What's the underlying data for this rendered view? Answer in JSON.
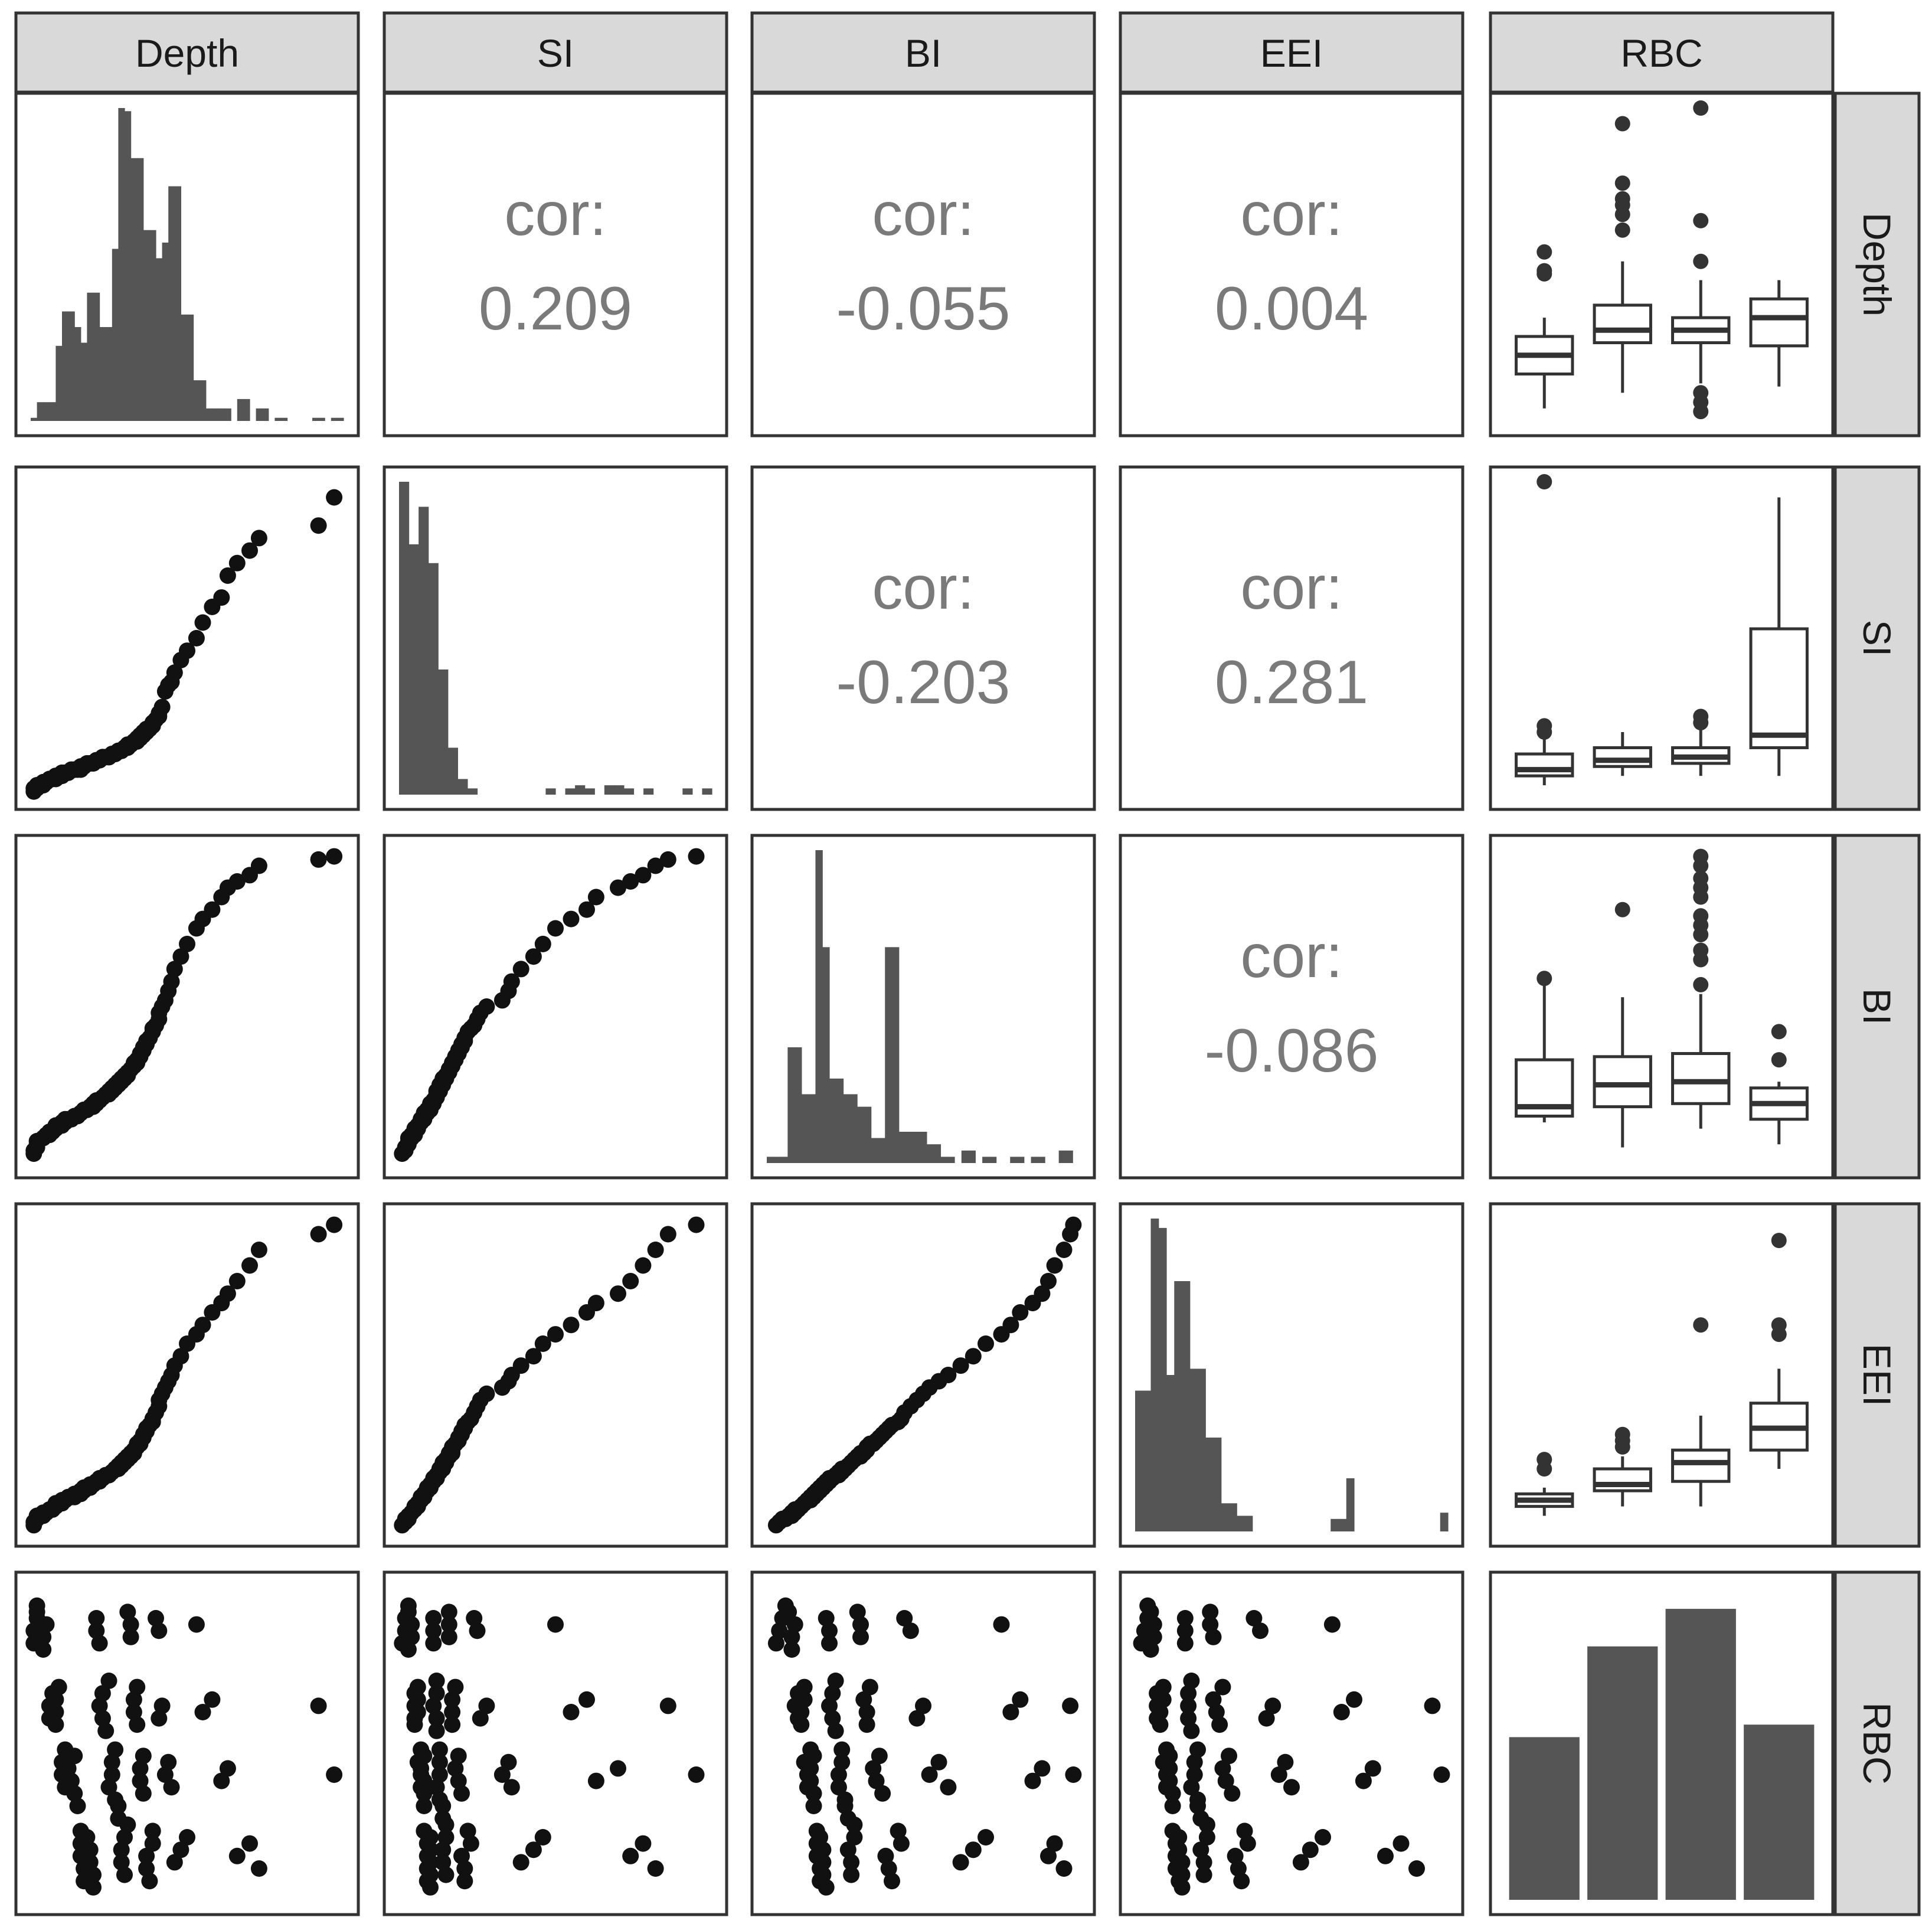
{
  "figure": {
    "variables": [
      "Depth",
      "SI",
      "BI",
      "EEI",
      "RBC"
    ],
    "cor_label": "cor:"
  },
  "chart_data": {
    "type": "pairs",
    "variables": [
      "Depth",
      "SI",
      "BI",
      "EEI",
      "RBC"
    ],
    "categorical_variable": "RBC",
    "correlations": [
      {
        "row": "Depth",
        "col": "SI",
        "value": "0.209"
      },
      {
        "row": "Depth",
        "col": "BI",
        "value": "-0.055"
      },
      {
        "row": "Depth",
        "col": "EEI",
        "value": "0.004"
      },
      {
        "row": "SI",
        "col": "BI",
        "value": "-0.203"
      },
      {
        "row": "SI",
        "col": "EEI",
        "value": "0.281"
      },
      {
        "row": "BI",
        "col": "EEI",
        "value": "-0.086"
      }
    ],
    "histograms": {
      "Depth": [
        0.01,
        0.06,
        0.06,
        0.06,
        0.24,
        0.35,
        0.35,
        0.3,
        0.25,
        0.41,
        0.41,
        0.3,
        0.3,
        0.55,
        1.0,
        0.99,
        0.84,
        0.84,
        0.61,
        0.61,
        0.52,
        0.57,
        0.75,
        0.75,
        0.34,
        0.34,
        0.13,
        0.13,
        0.04,
        0.04,
        0.04,
        0.04,
        0.0,
        0.07,
        0.07,
        0.0,
        0.04,
        0.04,
        0.0,
        0.01,
        0.01,
        0.0,
        0.0,
        0.0,
        0.0,
        0.01,
        0.01,
        0.0,
        0.01,
        0.01
      ],
      "SI": [
        1.0,
        0.8,
        0.92,
        0.74,
        0.4,
        0.15,
        0.05,
        0.02,
        0.0,
        0.0,
        0.0,
        0.0,
        0.0,
        0.0,
        0.0,
        0.02,
        0.0,
        0.02,
        0.03,
        0.02,
        0.0,
        0.03,
        0.03,
        0.02,
        0.0,
        0.02,
        0.0,
        0.0,
        0.0,
        0.02,
        0.0,
        0.02
      ],
      "BI": [
        0.02,
        0.02,
        0.02,
        0.37,
        0.37,
        0.22,
        0.22,
        1.0,
        0.69,
        0.27,
        0.27,
        0.22,
        0.22,
        0.18,
        0.18,
        0.08,
        0.08,
        0.69,
        0.69,
        0.1,
        0.1,
        0.1,
        0.1,
        0.06,
        0.06,
        0.02,
        0.02,
        0.0,
        0.04,
        0.04,
        0.0,
        0.02,
        0.02,
        0.0,
        0.0,
        0.02,
        0.02,
        0.0,
        0.02,
        0.02,
        0.0,
        0.0,
        0.04,
        0.04,
        0.0
      ],
      "EEI": [
        0.45,
        0.45,
        1.0,
        0.97,
        0.5,
        0.8,
        0.8,
        0.52,
        0.52,
        0.3,
        0.3,
        0.09,
        0.09,
        0.05,
        0.05,
        0.0,
        0.0,
        0.0,
        0.0,
        0.0,
        0.0,
        0.0,
        0.0,
        0.0,
        0.0,
        0.04,
        0.04,
        0.17,
        0.0,
        0.0,
        0.0,
        0.0,
        0.0,
        0.0,
        0.0,
        0.0,
        0.0,
        0.0,
        0.0,
        0.06
      ]
    },
    "rbc_counts": [
      0.52,
      0.81,
      0.93,
      0.56
    ],
    "boxplots": {
      "Depth": [
        {
          "q1": 0.15,
          "median": 0.21,
          "q3": 0.27,
          "wlo": 0.04,
          "whi": 0.33,
          "out": [
            0.47,
            0.48,
            0.54
          ]
        },
        {
          "q1": 0.25,
          "median": 0.29,
          "q3": 0.37,
          "wlo": 0.09,
          "whi": 0.51,
          "out": [
            0.61,
            0.66,
            0.69,
            0.71,
            0.76,
            0.95
          ]
        },
        {
          "q1": 0.25,
          "median": 0.29,
          "q3": 0.33,
          "wlo": 0.12,
          "whi": 0.45,
          "out": [
            0.03,
            0.06,
            0.09,
            0.51,
            0.64,
            1.0
          ]
        },
        {
          "q1": 0.24,
          "median": 0.33,
          "q3": 0.39,
          "wlo": 0.11,
          "whi": 0.45,
          "out": []
        }
      ],
      "SI": [
        {
          "q1": 0.06,
          "median": 0.08,
          "q3": 0.13,
          "wlo": 0.03,
          "whi": 0.19,
          "out": [
            0.2,
            0.22,
            1.0
          ]
        },
        {
          "q1": 0.09,
          "median": 0.11,
          "q3": 0.15,
          "wlo": 0.06,
          "whi": 0.2,
          "out": []
        },
        {
          "q1": 0.1,
          "median": 0.12,
          "q3": 0.15,
          "wlo": 0.06,
          "whi": 0.21,
          "out": [
            0.23,
            0.25
          ]
        },
        {
          "q1": 0.15,
          "median": 0.19,
          "q3": 0.53,
          "wlo": 0.06,
          "whi": 0.95,
          "out": []
        }
      ],
      "BI": [
        {
          "q1": 0.15,
          "median": 0.18,
          "q3": 0.33,
          "wlo": 0.13,
          "whi": 0.58,
          "out": [
            0.59
          ]
        },
        {
          "q1": 0.18,
          "median": 0.25,
          "q3": 0.34,
          "wlo": 0.05,
          "whi": 0.53,
          "out": [
            0.81
          ]
        },
        {
          "q1": 0.19,
          "median": 0.26,
          "q3": 0.35,
          "wlo": 0.11,
          "whi": 0.54,
          "out": [
            0.57,
            0.65,
            0.68,
            0.73,
            0.76,
            0.79,
            0.85,
            0.88,
            0.91,
            0.95,
            0.98
          ]
        },
        {
          "q1": 0.14,
          "median": 0.19,
          "q3": 0.24,
          "wlo": 0.06,
          "whi": 0.26,
          "out": [
            0.33,
            0.42
          ]
        }
      ],
      "EEI": [
        {
          "q1": 0.08,
          "median": 0.1,
          "q3": 0.12,
          "wlo": 0.05,
          "whi": 0.14,
          "out": [
            0.2,
            0.23
          ]
        },
        {
          "q1": 0.13,
          "median": 0.15,
          "q3": 0.2,
          "wlo": 0.08,
          "whi": 0.24,
          "out": [
            0.27,
            0.29,
            0.31
          ]
        },
        {
          "q1": 0.16,
          "median": 0.22,
          "q3": 0.26,
          "wlo": 0.08,
          "whi": 0.37,
          "out": [
            0.66
          ]
        },
        {
          "q1": 0.26,
          "median": 0.33,
          "q3": 0.41,
          "wlo": 0.2,
          "whi": 0.52,
          "out": [
            0.63,
            0.66,
            0.93
          ]
        }
      ]
    },
    "scatter": {
      "Depth": [
        0.01,
        0.01,
        0.02,
        0.02,
        0.02,
        0.04,
        0.04,
        0.05,
        0.06,
        0.06,
        0.07,
        0.08,
        0.08,
        0.08,
        0.09,
        0.1,
        0.1,
        0.11,
        0.11,
        0.12,
        0.13,
        0.14,
        0.14,
        0.15,
        0.16,
        0.16,
        0.16,
        0.17,
        0.17,
        0.18,
        0.19,
        0.19,
        0.2,
        0.2,
        0.21,
        0.21,
        0.22,
        0.22,
        0.23,
        0.23,
        0.24,
        0.25,
        0.25,
        0.26,
        0.26,
        0.27,
        0.27,
        0.28,
        0.28,
        0.29,
        0.29,
        0.3,
        0.3,
        0.31,
        0.31,
        0.32,
        0.32,
        0.33,
        0.33,
        0.34,
        0.34,
        0.35,
        0.35,
        0.36,
        0.36,
        0.37,
        0.37,
        0.38,
        0.39,
        0.39,
        0.4,
        0.41,
        0.41,
        0.42,
        0.43,
        0.44,
        0.45,
        0.46,
        0.48,
        0.5,
        0.53,
        0.55,
        0.58,
        0.61,
        0.63,
        0.66,
        0.7,
        0.73,
        0.92,
        0.97
      ],
      "SI": [
        0.01,
        0.02,
        0.02,
        0.03,
        0.03,
        0.03,
        0.04,
        0.04,
        0.05,
        0.05,
        0.05,
        0.05,
        0.06,
        0.06,
        0.06,
        0.06,
        0.07,
        0.07,
        0.07,
        0.07,
        0.08,
        0.08,
        0.08,
        0.08,
        0.08,
        0.09,
        0.09,
        0.09,
        0.09,
        0.1,
        0.1,
        0.1,
        0.1,
        0.1,
        0.11,
        0.11,
        0.11,
        0.11,
        0.12,
        0.12,
        0.12,
        0.12,
        0.12,
        0.13,
        0.13,
        0.13,
        0.13,
        0.14,
        0.14,
        0.14,
        0.14,
        0.15,
        0.15,
        0.15,
        0.16,
        0.16,
        0.16,
        0.17,
        0.17,
        0.17,
        0.18,
        0.18,
        0.19,
        0.19,
        0.2,
        0.2,
        0.21,
        0.21,
        0.22,
        0.23,
        0.24,
        0.25,
        0.26,
        0.28,
        0.33,
        0.35,
        0.36,
        0.39,
        0.43,
        0.46,
        0.5,
        0.55,
        0.6,
        0.63,
        0.7,
        0.74,
        0.78,
        0.82,
        0.86,
        0.95
      ],
      "BI": [
        0.03,
        0.04,
        0.05,
        0.06,
        0.07,
        0.08,
        0.08,
        0.09,
        0.09,
        0.1,
        0.1,
        0.11,
        0.11,
        0.12,
        0.12,
        0.12,
        0.13,
        0.13,
        0.14,
        0.14,
        0.14,
        0.15,
        0.15,
        0.15,
        0.16,
        0.16,
        0.16,
        0.17,
        0.17,
        0.17,
        0.18,
        0.18,
        0.18,
        0.19,
        0.19,
        0.2,
        0.2,
        0.2,
        0.21,
        0.21,
        0.22,
        0.22,
        0.23,
        0.23,
        0.24,
        0.24,
        0.25,
        0.25,
        0.26,
        0.26,
        0.27,
        0.27,
        0.28,
        0.28,
        0.29,
        0.3,
        0.3,
        0.31,
        0.32,
        0.32,
        0.33,
        0.34,
        0.35,
        0.36,
        0.37,
        0.38,
        0.39,
        0.4,
        0.42,
        0.43,
        0.44,
        0.46,
        0.48,
        0.5,
        0.52,
        0.55,
        0.58,
        0.62,
        0.66,
        0.7,
        0.75,
        0.78,
        0.81,
        0.85,
        0.88,
        0.9,
        0.92,
        0.95,
        0.97,
        0.98
      ],
      "EEI": [
        0.02,
        0.03,
        0.04,
        0.04,
        0.05,
        0.05,
        0.06,
        0.06,
        0.07,
        0.07,
        0.07,
        0.08,
        0.08,
        0.09,
        0.09,
        0.09,
        0.1,
        0.1,
        0.1,
        0.11,
        0.11,
        0.11,
        0.12,
        0.12,
        0.12,
        0.13,
        0.13,
        0.13,
        0.14,
        0.14,
        0.14,
        0.15,
        0.15,
        0.15,
        0.16,
        0.16,
        0.16,
        0.17,
        0.17,
        0.17,
        0.18,
        0.18,
        0.18,
        0.19,
        0.19,
        0.2,
        0.2,
        0.2,
        0.21,
        0.21,
        0.22,
        0.22,
        0.23,
        0.23,
        0.24,
        0.24,
        0.25,
        0.25,
        0.26,
        0.27,
        0.28,
        0.28,
        0.29,
        0.3,
        0.31,
        0.32,
        0.33,
        0.34,
        0.35,
        0.36,
        0.38,
        0.4,
        0.42,
        0.44,
        0.46,
        0.48,
        0.5,
        0.53,
        0.56,
        0.6,
        0.63,
        0.66,
        0.7,
        0.73,
        0.76,
        0.8,
        0.85,
        0.9,
        0.95,
        0.98
      ],
      "RBC": [
        0.82,
        0.86,
        0.9,
        0.94,
        0.92,
        0.8,
        0.84,
        0.88,
        0.62,
        0.58,
        0.66,
        0.56,
        0.6,
        0.64,
        0.68,
        0.44,
        0.4,
        0.36,
        0.48,
        0.42,
        0.38,
        0.46,
        0.34,
        0.3,
        0.22,
        0.18,
        0.14,
        0.1,
        0.06,
        0.2,
        0.16,
        0.12,
        0.08,
        0.04,
        0.9,
        0.86,
        0.82,
        0.62,
        0.66,
        0.58,
        0.54,
        0.7,
        0.36,
        0.4,
        0.44,
        0.48,
        0.32,
        0.3,
        0.26,
        0.16,
        0.12,
        0.08,
        0.2,
        0.24,
        0.92,
        0.88,
        0.84,
        0.64,
        0.6,
        0.56,
        0.68,
        0.42,
        0.38,
        0.46,
        0.34,
        0.14,
        0.1,
        0.06,
        0.22,
        0.18,
        0.9,
        0.86,
        0.58,
        0.62,
        0.4,
        0.44,
        0.36,
        0.12,
        0.16,
        0.2,
        0.88,
        0.6,
        0.64,
        0.38,
        0.42,
        0.14,
        0.18,
        0.1,
        0.62,
        0.4
      ]
    }
  }
}
